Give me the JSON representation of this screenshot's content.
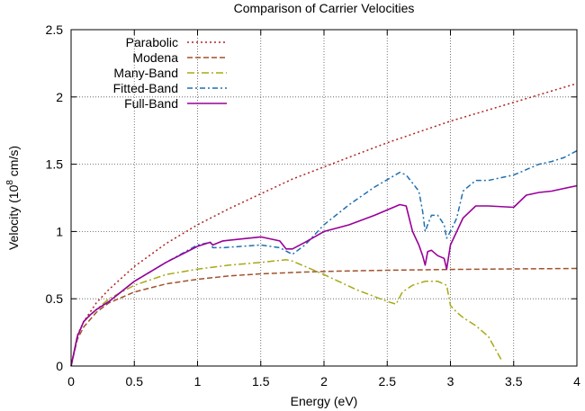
{
  "chart_data": {
    "type": "line",
    "title": "Comparison of Carrier Velocities",
    "xlabel": "Energy (eV)",
    "ylabel_prefix": "Velocity (10",
    "ylabel_exp": "8",
    "ylabel_suffix": " cm/s)",
    "xlim": [
      0,
      4
    ],
    "ylim": [
      0,
      2.5
    ],
    "xticks": [
      "0",
      "0.5",
      "1",
      "1.5",
      "2",
      "2.5",
      "3",
      "3.5",
      "4"
    ],
    "yticks": [
      "0",
      "0.5",
      "1",
      "1.5",
      "2",
      "2.5"
    ],
    "grid": true,
    "legend_position": "top-left",
    "series": [
      {
        "name": "Parabolic",
        "color": "#b22222",
        "dash": "dotted",
        "x": [
          0,
          0.05,
          0.1,
          0.2,
          0.3,
          0.5,
          0.75,
          1.0,
          1.25,
          1.5,
          1.75,
          2.0,
          2.25,
          2.5,
          2.75,
          3.0,
          3.25,
          3.5,
          3.75,
          4.0
        ],
        "y": [
          0,
          0.23,
          0.33,
          0.47,
          0.57,
          0.74,
          0.91,
          1.05,
          1.17,
          1.28,
          1.39,
          1.48,
          1.57,
          1.66,
          1.74,
          1.82,
          1.89,
          1.96,
          2.03,
          2.1
        ]
      },
      {
        "name": "Modena",
        "color": "#a0522d",
        "dash": "dashed",
        "x": [
          0,
          0.05,
          0.1,
          0.2,
          0.3,
          0.5,
          0.75,
          1.0,
          1.25,
          1.5,
          1.75,
          2.0,
          2.5,
          3.0,
          3.5,
          4.0
        ],
        "y": [
          0,
          0.2,
          0.29,
          0.4,
          0.47,
          0.55,
          0.61,
          0.645,
          0.67,
          0.685,
          0.695,
          0.703,
          0.712,
          0.718,
          0.722,
          0.725
        ]
      },
      {
        "name": "Many-Band",
        "color": "#a8a818",
        "dash": "dashdot",
        "x": [
          0,
          0.05,
          0.1,
          0.2,
          0.3,
          0.5,
          0.75,
          1.0,
          1.25,
          1.5,
          1.7,
          1.75,
          2.0,
          2.25,
          2.5,
          2.57,
          2.62,
          2.7,
          2.8,
          2.9,
          2.97,
          3.0,
          3.05,
          3.1,
          3.2,
          3.3,
          3.4
        ],
        "y": [
          0,
          0.22,
          0.33,
          0.42,
          0.5,
          0.6,
          0.68,
          0.72,
          0.75,
          0.77,
          0.79,
          0.78,
          0.68,
          0.57,
          0.48,
          0.46,
          0.55,
          0.6,
          0.63,
          0.63,
          0.6,
          0.45,
          0.4,
          0.36,
          0.3,
          0.22,
          0.05
        ]
      },
      {
        "name": "Fitted-Band",
        "color": "#1f6fb0",
        "dash": "dashdotlong",
        "x": [
          0,
          0.05,
          0.1,
          0.15,
          0.2,
          0.3,
          0.5,
          0.75,
          1.0,
          1.1,
          1.12,
          1.2,
          1.5,
          1.65,
          1.75,
          1.85,
          2.0,
          2.2,
          2.4,
          2.6,
          2.65,
          2.75,
          2.78,
          2.8,
          2.82,
          2.85,
          2.9,
          2.95,
          2.97,
          3.0,
          3.05,
          3.1,
          3.2,
          3.3,
          3.5,
          3.6,
          3.7,
          3.8,
          3.9,
          4.0
        ],
        "y": [
          0,
          0.22,
          0.33,
          0.38,
          0.42,
          0.48,
          0.63,
          0.77,
          0.9,
          0.92,
          0.88,
          0.88,
          0.9,
          0.88,
          0.83,
          0.9,
          1.05,
          1.2,
          1.33,
          1.44,
          1.42,
          1.3,
          1.15,
          1.0,
          1.05,
          1.12,
          1.12,
          1.05,
          0.95,
          1.0,
          1.1,
          1.3,
          1.38,
          1.38,
          1.42,
          1.46,
          1.5,
          1.52,
          1.55,
          1.6
        ]
      },
      {
        "name": "Full-Band",
        "color": "#990099",
        "dash": "solid",
        "x": [
          0,
          0.05,
          0.1,
          0.15,
          0.2,
          0.3,
          0.5,
          0.75,
          1.0,
          1.1,
          1.12,
          1.2,
          1.5,
          1.65,
          1.7,
          1.75,
          1.85,
          2.0,
          2.2,
          2.4,
          2.6,
          2.65,
          2.7,
          2.75,
          2.78,
          2.8,
          2.82,
          2.85,
          2.9,
          2.95,
          2.97,
          3.0,
          3.1,
          3.2,
          3.3,
          3.5,
          3.6,
          3.7,
          3.8,
          3.9,
          4.0
        ],
        "y": [
          0,
          0.22,
          0.33,
          0.38,
          0.42,
          0.48,
          0.63,
          0.77,
          0.89,
          0.92,
          0.9,
          0.93,
          0.96,
          0.93,
          0.87,
          0.87,
          0.92,
          1.0,
          1.05,
          1.12,
          1.2,
          1.19,
          1.0,
          0.9,
          0.82,
          0.75,
          0.85,
          0.86,
          0.82,
          0.8,
          0.72,
          0.9,
          1.1,
          1.19,
          1.19,
          1.18,
          1.27,
          1.29,
          1.3,
          1.32,
          1.34
        ]
      }
    ]
  }
}
